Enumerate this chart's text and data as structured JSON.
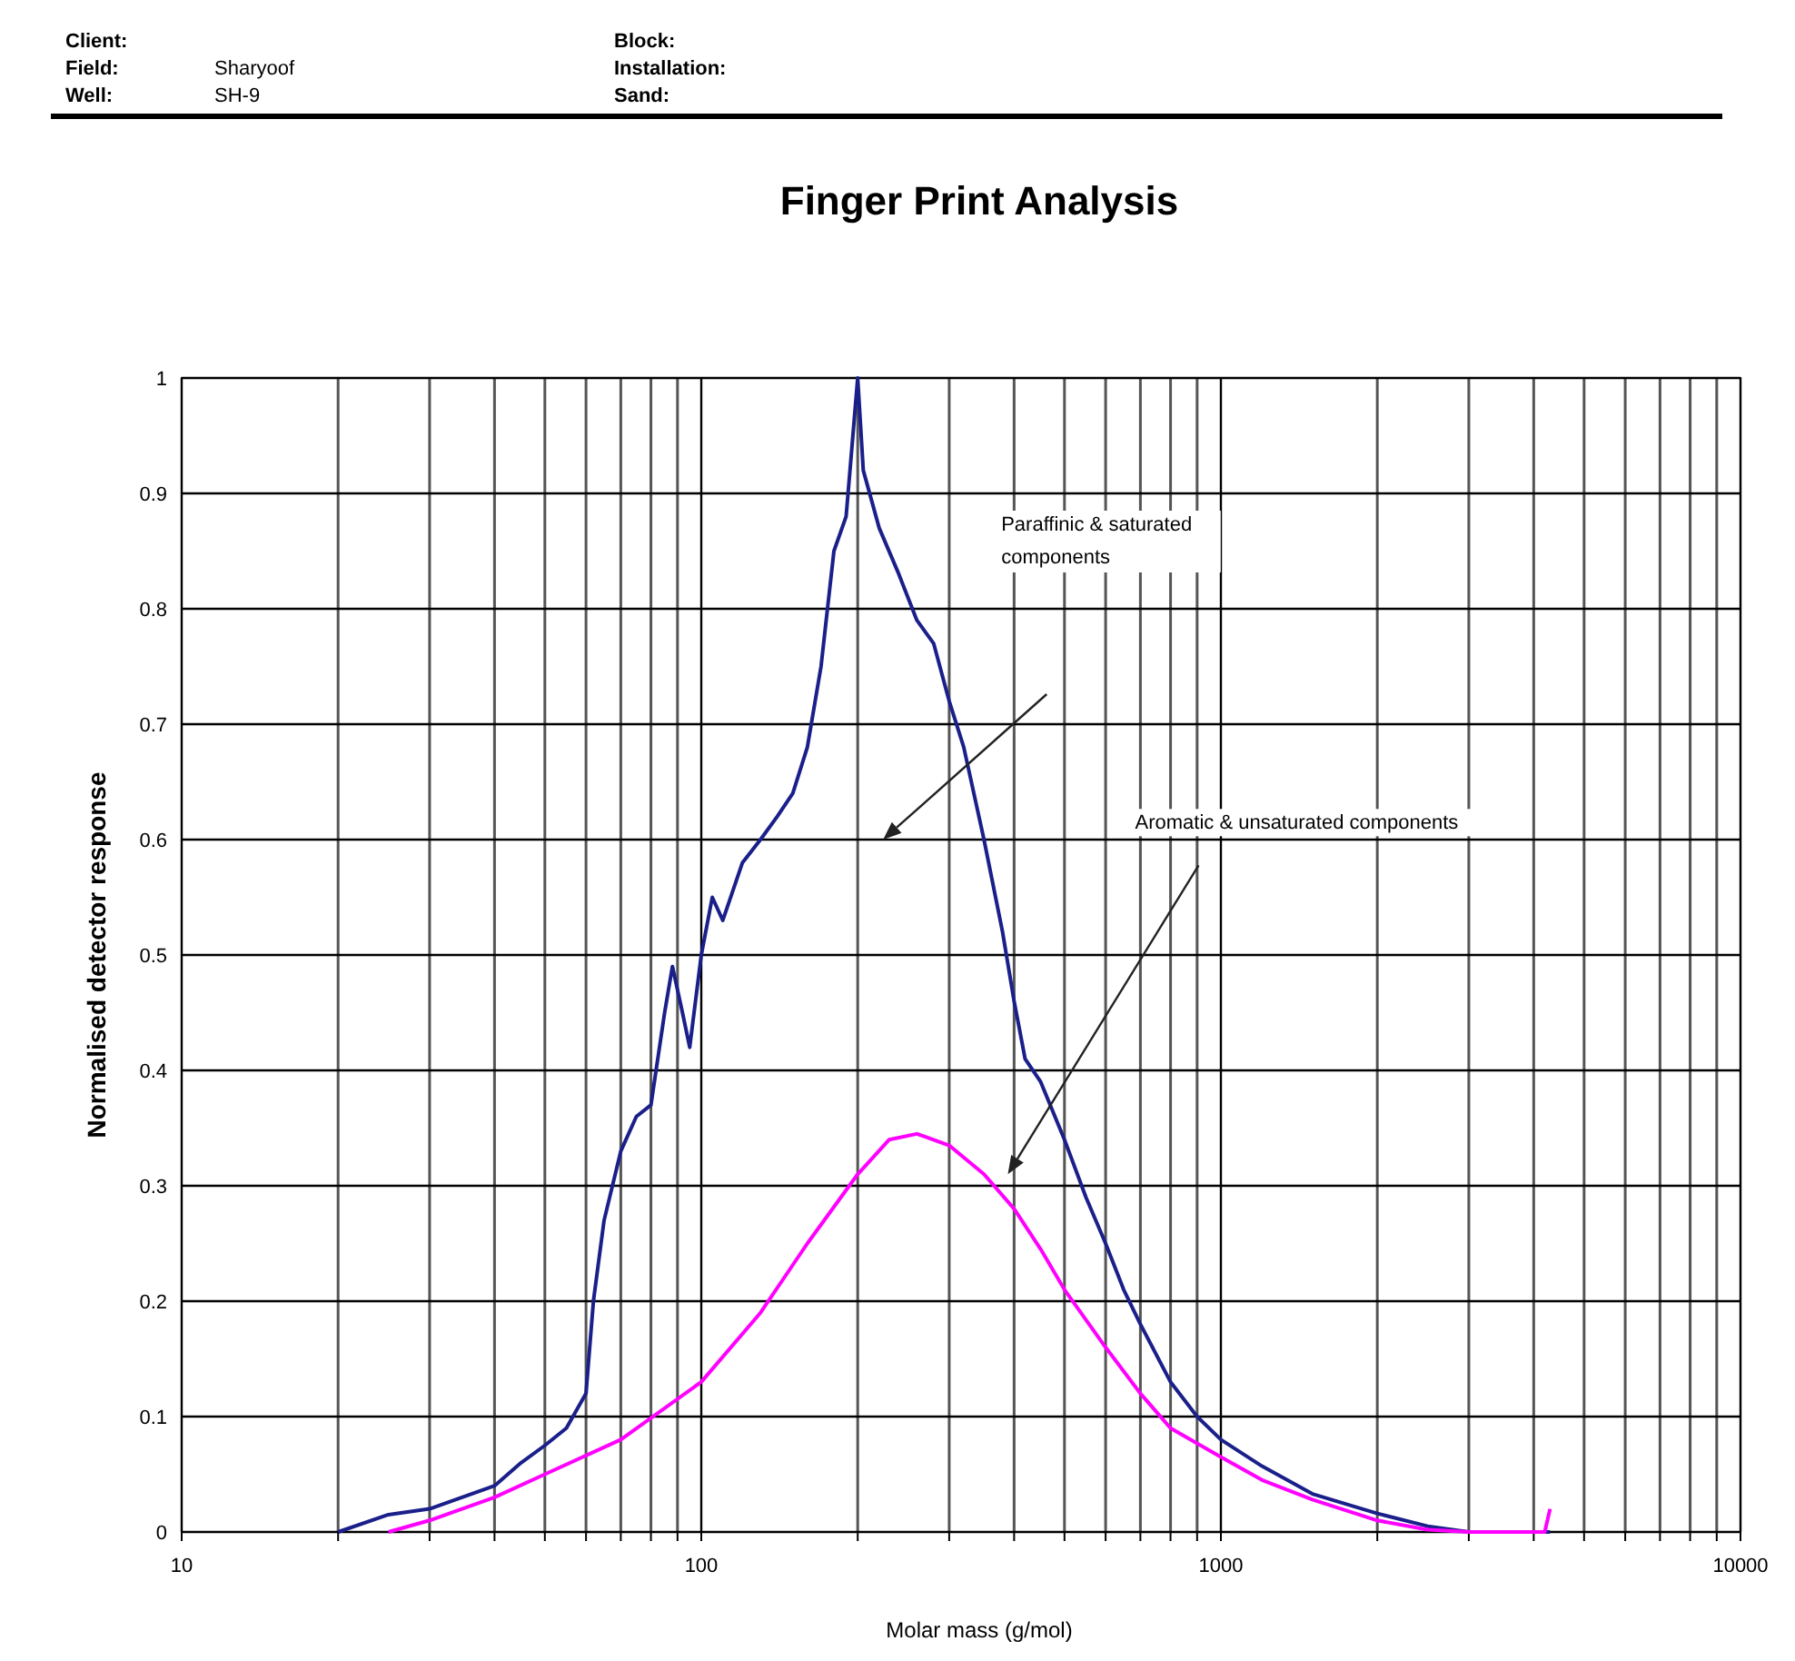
{
  "chart_data": {
    "type": "line",
    "title": "Finger Print Analysis",
    "xlabel": "Molar mass (g/mol)",
    "ylabel": "Normalised detector response",
    "log": "x",
    "grid": true,
    "marker": "none",
    "line_style": "solid",
    "xlim": [
      10,
      10000
    ],
    "ylim": [
      0,
      1
    ],
    "xticks": [
      10,
      {
        "value": 20,
        "label": null
      },
      {
        "value": 30,
        "label": null
      },
      {
        "value": 40,
        "label": null
      },
      {
        "value": 50,
        "label": null
      },
      {
        "value": 60,
        "label": null
      },
      {
        "value": 70,
        "label": null
      },
      {
        "value": 80,
        "label": null
      },
      {
        "value": 90,
        "label": null
      },
      100,
      {
        "value": 200,
        "label": null
      },
      {
        "value": 300,
        "label": null
      },
      {
        "value": 400,
        "label": null
      },
      {
        "value": 500,
        "label": null
      },
      {
        "value": 600,
        "label": null
      },
      {
        "value": 700,
        "label": null
      },
      {
        "value": 800,
        "label": null
      },
      {
        "value": 900,
        "label": null
      },
      1000,
      {
        "value": 2000,
        "label": null
      },
      {
        "value": 3000,
        "label": null
      },
      {
        "value": 4000,
        "label": null
      },
      {
        "value": 5000,
        "label": null
      },
      {
        "value": 6000,
        "label": null
      },
      {
        "value": 7000,
        "label": null
      },
      {
        "value": 8000,
        "label": null
      },
      {
        "value": 9000,
        "label": null
      },
      10000
    ],
    "yticks": [
      0,
      0.1,
      0.2,
      0.3,
      0.4,
      0.5,
      0.6,
      0.7,
      0.8,
      0.9,
      1
    ],
    "series": [
      {
        "color": "#1a1f8a",
        "x": [
          20,
          25,
          30,
          40,
          45,
          50,
          55,
          60,
          62,
          65,
          70,
          75,
          80,
          85,
          88,
          92,
          95,
          100,
          105,
          110,
          120,
          130,
          140,
          150,
          160,
          170,
          180,
          190,
          200,
          205,
          220,
          240,
          260,
          280,
          300,
          320,
          350,
          380,
          400,
          420,
          450,
          500,
          550,
          600,
          650,
          700,
          800,
          900,
          1000,
          1200,
          1500,
          2000,
          2500,
          3000,
          4300
        ],
        "values": [
          0,
          0.015,
          0.02,
          0.04,
          0.06,
          0.075,
          0.09,
          0.12,
          0.2,
          0.27,
          0.33,
          0.36,
          0.37,
          0.45,
          0.49,
          0.45,
          0.42,
          0.5,
          0.55,
          0.53,
          0.58,
          0.6,
          0.62,
          0.64,
          0.68,
          0.75,
          0.85,
          0.88,
          1,
          0.92,
          0.87,
          0.83,
          0.79,
          0.77,
          0.72,
          0.68,
          0.6,
          0.52,
          0.46,
          0.41,
          0.39,
          0.34,
          0.29,
          0.25,
          0.21,
          0.18,
          0.13,
          0.1,
          0.08,
          0.057,
          0.033,
          0.016,
          0.005,
          0,
          0
        ]
      },
      {
        "color": "#ff00ff",
        "x": [
          25,
          30,
          40,
          50,
          70,
          100,
          130,
          160,
          200,
          230,
          260,
          300,
          350,
          400,
          450,
          500,
          600,
          700,
          800,
          1000,
          1200,
          1500,
          2000,
          2500,
          3000,
          4200,
          4300
        ],
        "values": [
          0,
          0.01,
          0.03,
          0.05,
          0.08,
          0.13,
          0.19,
          0.25,
          0.31,
          0.34,
          0.345,
          0.335,
          0.31,
          0.28,
          0.245,
          0.21,
          0.16,
          0.12,
          0.09,
          0.065,
          0.045,
          0.028,
          0.01,
          0.002,
          0,
          0,
          0.02
        ]
      }
    ],
    "annotations": [
      "Client:",
      "Field:",
      "Sharyoof",
      "Well:",
      "SH-9",
      "Block:",
      "Installation:",
      "Sand:",
      "Paraffinic & saturated components",
      "Aromatic & unsaturated components"
    ]
  }
}
